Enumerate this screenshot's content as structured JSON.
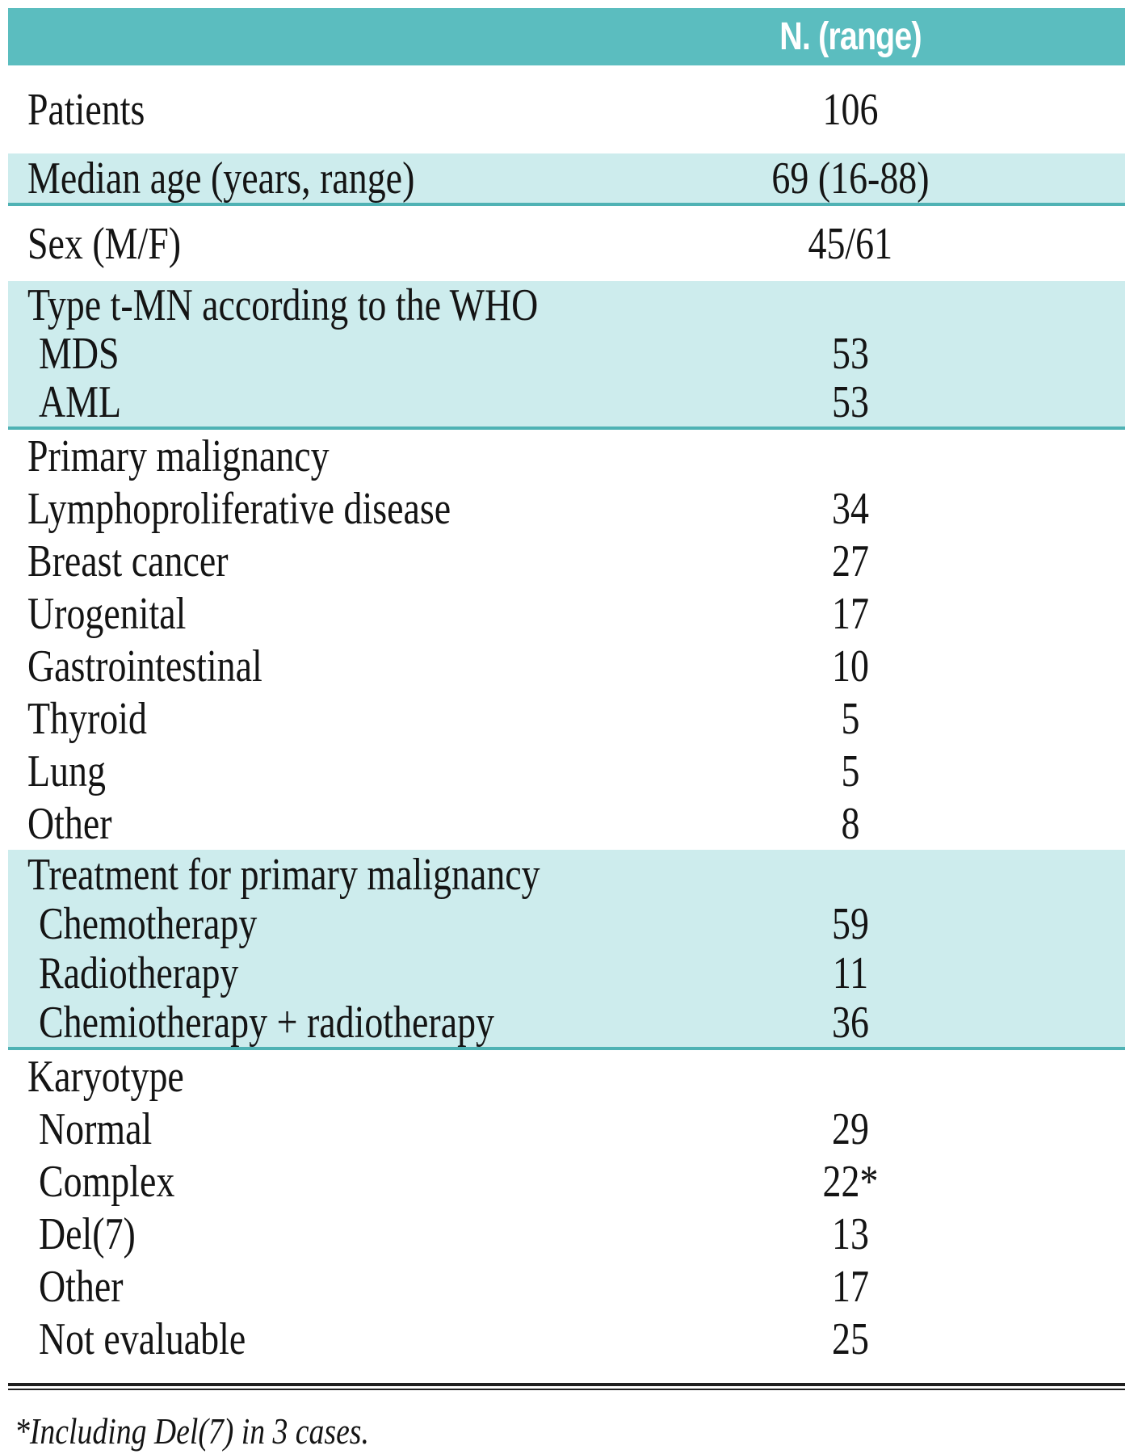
{
  "colors": {
    "header_teal": "#5bbdbf",
    "light_teal": "#cdeced",
    "border_teal": "#4fb2b4",
    "text": "#141414",
    "header_text": "#ffffff"
  },
  "table": {
    "header": {
      "value_column": "N. (range)"
    },
    "sections": [
      {
        "shaded": false,
        "rows": [
          {
            "label": "Patients",
            "value": "106"
          }
        ]
      },
      {
        "shaded": true,
        "rows": [
          {
            "label": "Median age (years, range)",
            "value": "69 (16-88)"
          }
        ]
      },
      {
        "shaded": false,
        "rows": [
          {
            "label": "Sex (M/F)",
            "value": "45/61"
          }
        ]
      },
      {
        "shaded": true,
        "rows": [
          {
            "label": "Type t-MN according to the WHO",
            "value": ""
          },
          {
            "label": "MDS",
            "value": "53",
            "sub": true
          },
          {
            "label": "AML",
            "value": "53",
            "sub": true
          }
        ]
      },
      {
        "shaded": false,
        "rows": [
          {
            "label": "Primary malignancy",
            "value": ""
          },
          {
            "label": "Lymphoproliferative disease",
            "value": "34"
          },
          {
            "label": "Breast cancer",
            "value": "27"
          },
          {
            "label": "Urogenital",
            "value": "17"
          },
          {
            "label": "Gastrointestinal",
            "value": "10"
          },
          {
            "label": "Thyroid",
            "value": "5"
          },
          {
            "label": "Lung",
            "value": "5"
          },
          {
            "label": "Other",
            "value": "8"
          }
        ]
      },
      {
        "shaded": true,
        "rows": [
          {
            "label": "Treatment for primary malignancy",
            "value": ""
          },
          {
            "label": "Chemotherapy",
            "value": "59",
            "sub": true
          },
          {
            "label": "Radiotherapy",
            "value": "11",
            "sub": true
          },
          {
            "label": "Chemiotherapy + radiotherapy",
            "value": "36",
            "sub": true
          }
        ]
      },
      {
        "shaded": false,
        "rows": [
          {
            "label": "Karyotype",
            "value": ""
          },
          {
            "label": "Normal",
            "value": "29",
            "sub": true
          },
          {
            "label": "Complex",
            "value": "22*",
            "sub": true
          },
          {
            "label": "Del(7)",
            "value": "13",
            "sub": true
          },
          {
            "label": "Other",
            "value": "17",
            "sub": true
          },
          {
            "label": "Not evaluable",
            "value": "25",
            "sub": true
          }
        ]
      }
    ],
    "footnote": "*Including Del(7) in 3 cases."
  }
}
